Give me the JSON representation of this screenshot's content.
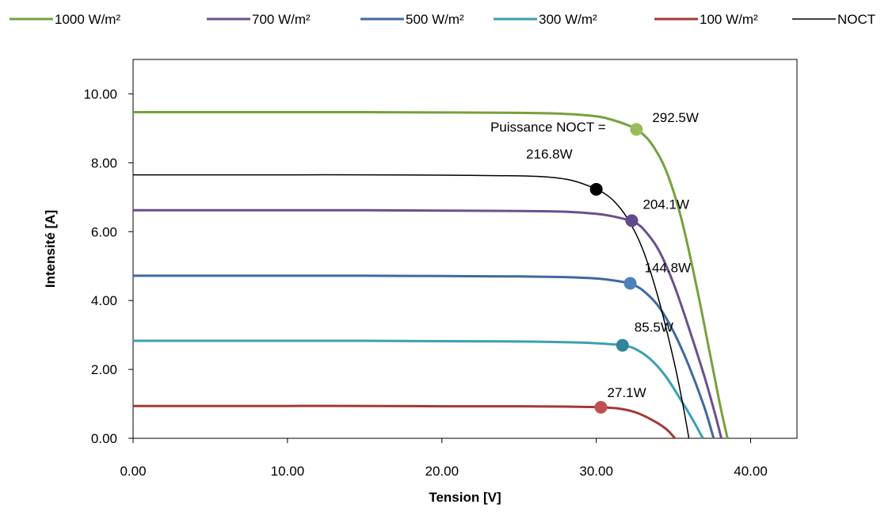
{
  "chart_data": {
    "type": "line",
    "title": "",
    "xlabel": "Tension [V]",
    "ylabel": "Intensité [A]",
    "xlim": [
      0,
      43
    ],
    "ylim": [
      0,
      11
    ],
    "xticks": [
      {
        "value": 0,
        "label": "0.00"
      },
      {
        "value": 10,
        "label": "10.00"
      },
      {
        "value": 20,
        "label": "20.00"
      },
      {
        "value": 30,
        "label": "30.00"
      },
      {
        "value": 40,
        "label": "40.00"
      }
    ],
    "yticks": [
      {
        "value": 0,
        "label": "0.00"
      },
      {
        "value": 2,
        "label": "2.00"
      },
      {
        "value": 4,
        "label": "4.00"
      },
      {
        "value": 6,
        "label": "6.00"
      },
      {
        "value": 8,
        "label": "8.00"
      },
      {
        "value": 10,
        "label": "10.00"
      }
    ],
    "grid": false,
    "legend_position": "top",
    "series": [
      {
        "name": "1000 W/m²",
        "color": "#77a03c",
        "line_weight": "thick",
        "x": [
          0,
          5,
          10,
          15,
          20,
          25,
          28,
          30,
          31,
          32,
          32.6,
          33.5,
          34.5,
          35.5,
          36.5,
          37.3,
          38,
          38.5
        ],
        "y": [
          9.47,
          9.47,
          9.47,
          9.47,
          9.46,
          9.45,
          9.42,
          9.35,
          9.25,
          9.1,
          8.97,
          8.6,
          7.8,
          6.4,
          4.4,
          2.6,
          1.0,
          0
        ],
        "marker": {
          "x": 32.6,
          "y": 8.97,
          "color": "#9bbb59",
          "label": "292.5W"
        }
      },
      {
        "name": "700 W/m²",
        "color": "#6b4f8e",
        "line_weight": "thick",
        "x": [
          0,
          5,
          10,
          15,
          20,
          25,
          28,
          30,
          31,
          32,
          32.3,
          33,
          34,
          35,
          36,
          37,
          37.7,
          38.1
        ],
        "y": [
          6.62,
          6.62,
          6.62,
          6.62,
          6.61,
          6.6,
          6.58,
          6.52,
          6.45,
          6.35,
          6.32,
          6.1,
          5.5,
          4.5,
          3.2,
          1.8,
          0.7,
          0
        ],
        "marker": {
          "x": 32.3,
          "y": 6.32,
          "color": "#5f4a8b",
          "label": "204.1W"
        }
      },
      {
        "name": "500 W/m²",
        "color": "#3d6a9f",
        "line_weight": "thick",
        "x": [
          0,
          5,
          10,
          15,
          20,
          25,
          28,
          30,
          31,
          32,
          32.2,
          33,
          34,
          35,
          36,
          37,
          37.6
        ],
        "y": [
          4.72,
          4.72,
          4.72,
          4.72,
          4.71,
          4.7,
          4.68,
          4.64,
          4.59,
          4.52,
          4.5,
          4.3,
          3.85,
          3.1,
          2.1,
          0.9,
          0
        ],
        "marker": {
          "x": 32.2,
          "y": 4.5,
          "color": "#4f81bd",
          "label": "144.8W"
        }
      },
      {
        "name": "300 W/m²",
        "color": "#3aa0b2",
        "line_weight": "thick",
        "x": [
          0,
          5,
          10,
          15,
          20,
          25,
          28,
          30,
          31,
          31.7,
          32.5,
          33.5,
          34.5,
          35.5,
          36.3,
          36.9
        ],
        "y": [
          2.83,
          2.83,
          2.83,
          2.83,
          2.82,
          2.81,
          2.79,
          2.76,
          2.73,
          2.7,
          2.6,
          2.3,
          1.8,
          1.1,
          0.5,
          0
        ],
        "marker": {
          "x": 31.7,
          "y": 2.7,
          "color": "#31849b",
          "label": "85.5W"
        }
      },
      {
        "name": "100 W/m²",
        "color": "#a33a36",
        "line_weight": "thick",
        "x": [
          0,
          5,
          10,
          15,
          20,
          25,
          28,
          29.5,
          30.3,
          31.5,
          32.5,
          33.5,
          34.5,
          35.1
        ],
        "y": [
          0.94,
          0.94,
          0.94,
          0.94,
          0.93,
          0.93,
          0.92,
          0.91,
          0.9,
          0.86,
          0.76,
          0.56,
          0.28,
          0
        ],
        "marker": {
          "x": 30.3,
          "y": 0.9,
          "color": "#c0504d",
          "label": "27.1W"
        }
      },
      {
        "name": "NOCT",
        "color": "#000000",
        "line_weight": "thin",
        "x": [
          0,
          5,
          10,
          15,
          20,
          25,
          27,
          28.5,
          30,
          31,
          32,
          33,
          34,
          35,
          35.6,
          36
        ],
        "y": [
          7.65,
          7.65,
          7.65,
          7.65,
          7.64,
          7.62,
          7.58,
          7.48,
          7.23,
          6.95,
          6.4,
          5.5,
          4.1,
          2.3,
          1.0,
          0
        ],
        "marker": {
          "x": 30,
          "y": 7.23,
          "color": "#000000",
          "label_lines": [
            "Puissance NOCT =",
            "216.8W"
          ]
        }
      }
    ]
  }
}
